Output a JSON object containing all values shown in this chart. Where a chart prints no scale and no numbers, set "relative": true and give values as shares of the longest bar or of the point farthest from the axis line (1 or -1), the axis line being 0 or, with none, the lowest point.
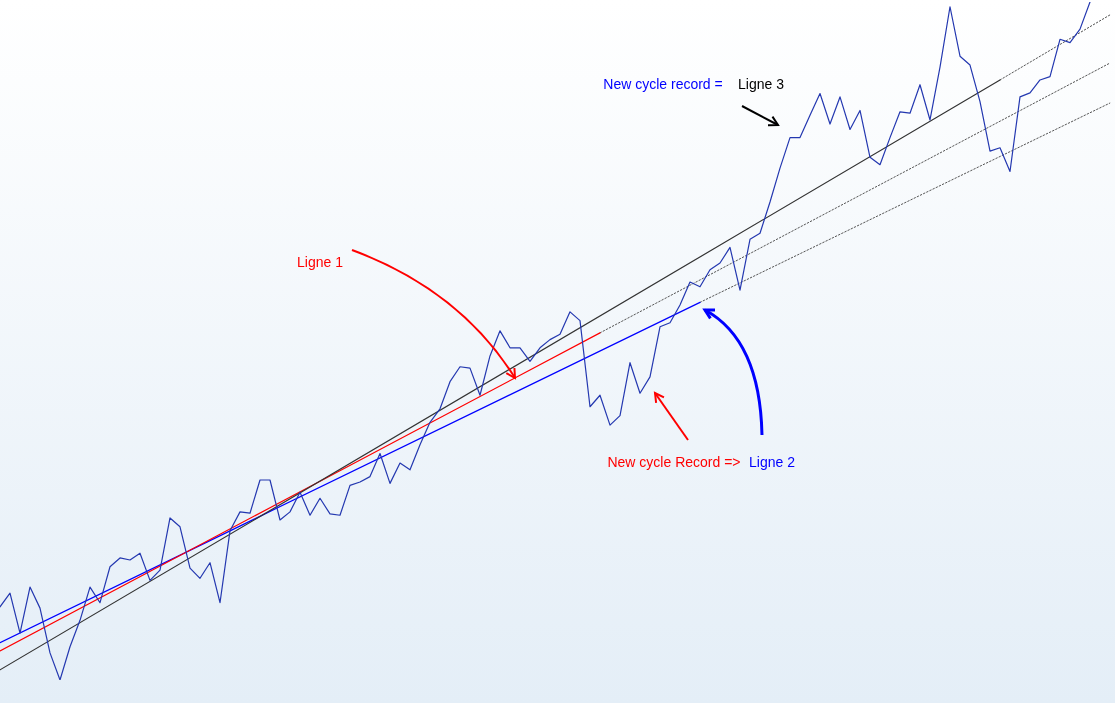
{
  "chart_data": {
    "type": "line",
    "relative": true,
    "categories": [
      null,
      null,
      null,
      null,
      null,
      null,
      null,
      null,
      null,
      null,
      null,
      null,
      null,
      null,
      null,
      null,
      null,
      null,
      null,
      null,
      null,
      null,
      null,
      null,
      null,
      null,
      null,
      null,
      null,
      null,
      null,
      null,
      null,
      null,
      null,
      null,
      null,
      null,
      null,
      null,
      null,
      null,
      null,
      null,
      null,
      null,
      null,
      null,
      null,
      null,
      null,
      null,
      null,
      null,
      null,
      null,
      null,
      null,
      null,
      null,
      null,
      null,
      null,
      null,
      null,
      null,
      null,
      null,
      null,
      null,
      null,
      null,
      null,
      null,
      null,
      null,
      null,
      null,
      null,
      null,
      null,
      null,
      null,
      null,
      null,
      null,
      null,
      null,
      null,
      null,
      null,
      null,
      null,
      null,
      null,
      null,
      null,
      null,
      null,
      null,
      null,
      null,
      null,
      null,
      null,
      null,
      null,
      null,
      null,
      null,
      null,
      null
    ],
    "series": [
      {
        "color": "#2438b0",
        "values": [
          0.108,
          0.128,
          0.069,
          0.137,
          0.106,
          0.04,
          0,
          0.049,
          0.088,
          0.137,
          0.114,
          0.167,
          0.18,
          0.177,
          0.187,
          0.147,
          0.162,
          0.239,
          0.226,
          0.165,
          0.15,
          0.173,
          0.114,
          0.22,
          0.248,
          0.246,
          0.295,
          0.295,
          0.236,
          0.248,
          0.277,
          0.243,
          0.268,
          0.245,
          0.243,
          0.287,
          0.292,
          0.3,
          0.334,
          0.29,
          0.32,
          0.31,
          0.347,
          0.38,
          0.4,
          0.44,
          0.462,
          0.46,
          0.42,
          0.478,
          0.515,
          0.49,
          0.49,
          0.47,
          0.49,
          0.502,
          0.51,
          0.543,
          0.53,
          0.403,
          0.42,
          0.376,
          0.39,
          0.468,
          0.423,
          0.447,
          0.521,
          0.527,
          0.553,
          0.587,
          0.58,
          0.605,
          0.615,
          0.638,
          0.575,
          0.65,
          0.659,
          0.705,
          0.755,
          0.8,
          0.8,
          0.833,
          0.865,
          0.82,
          0.86,
          0.812,
          0.84,
          0.771,
          0.76,
          0.8,
          0.838,
          0.836,
          0.878,
          0.826,
          0.904,
          0.993,
          0.92,
          0.907,
          0.853,
          0.78,
          0.785,
          0.75,
          0.86,
          0.866,
          0.885,
          0.89,
          0.945,
          0.94,
          0.96,
          1.0,
          null,
          null
        ]
      },
      {
        "type": "line",
        "color": "#333333",
        "values": [
          0.015,
          null,
          null,
          null,
          null,
          null,
          null,
          null,
          null,
          null,
          null,
          null,
          null,
          null,
          null,
          null,
          null,
          null,
          null,
          null,
          null,
          null,
          null,
          null,
          null,
          null,
          null,
          null,
          null,
          null,
          null,
          null,
          null,
          null,
          null,
          null,
          null,
          null,
          null,
          null,
          null,
          null,
          null,
          null,
          null,
          null,
          null,
          null,
          null,
          null,
          null,
          null,
          null,
          null,
          null,
          null,
          null,
          null,
          null,
          null,
          null,
          null,
          null,
          null,
          null,
          null,
          null,
          null,
          null,
          null,
          null,
          null,
          null,
          null,
          null,
          null,
          null,
          null,
          null,
          null,
          null,
          null,
          null,
          null,
          null,
          null,
          null,
          null,
          null,
          null,
          null,
          null,
          null,
          null,
          null,
          null,
          null,
          null,
          null,
          null,
          0.885,
          null,
          null,
          null,
          null,
          null,
          null,
          null,
          null,
          null,
          null,
          null
        ]
      },
      {
        "type": "line",
        "color": "#ff0000",
        "values": [
          0.043,
          null,
          null,
          null,
          null,
          null,
          null,
          null,
          null,
          null,
          null,
          null,
          null,
          null,
          null,
          null,
          null,
          null,
          null,
          null,
          null,
          null,
          null,
          null,
          null,
          null,
          null,
          null,
          null,
          null,
          null,
          null,
          null,
          null,
          null,
          null,
          null,
          null,
          null,
          null,
          null,
          null,
          null,
          null,
          null,
          null,
          null,
          null,
          null,
          null,
          null,
          null,
          null,
          null,
          null,
          null,
          null,
          null,
          null,
          null,
          0.512,
          null,
          null,
          null,
          null,
          null,
          null,
          null,
          null,
          null,
          null,
          null,
          null,
          null,
          null,
          null,
          null,
          null,
          null,
          null,
          null,
          null,
          null,
          null,
          null,
          null,
          null,
          null,
          null,
          null,
          null,
          null,
          null,
          null,
          null,
          null,
          null,
          null,
          null,
          null,
          null,
          null,
          null,
          null,
          null,
          null,
          null,
          null,
          null,
          null,
          null,
          null
        ]
      },
      {
        "type": "line",
        "color": "#0000ff",
        "values": [
          0.055,
          null,
          null,
          null,
          null,
          null,
          null,
          null,
          null,
          null,
          null,
          null,
          null,
          null,
          null,
          null,
          null,
          null,
          null,
          null,
          null,
          null,
          null,
          null,
          null,
          null,
          null,
          null,
          null,
          null,
          null,
          null,
          null,
          null,
          null,
          null,
          null,
          null,
          null,
          null,
          null,
          null,
          null,
          null,
          null,
          null,
          null,
          null,
          null,
          null,
          null,
          null,
          null,
          null,
          null,
          null,
          null,
          null,
          null,
          null,
          null,
          null,
          null,
          null,
          null,
          null,
          null,
          null,
          null,
          null,
          0.557,
          null,
          null,
          null,
          null,
          null,
          null,
          null,
          null,
          null,
          null,
          null,
          null,
          null,
          null,
          null,
          null,
          null,
          null,
          null,
          null,
          null,
          null,
          null,
          null,
          null,
          null,
          null,
          null,
          null,
          null,
          null,
          null,
          null,
          null,
          null,
          null,
          null,
          null,
          null,
          null,
          null
        ]
      },
      {
        "type": "line",
        "color": "#555555",
        "line_style": "dotted",
        "values": [
          null,
          null,
          null,
          null,
          null,
          null,
          null,
          null,
          null,
          null,
          null,
          null,
          null,
          null,
          null,
          null,
          null,
          null,
          null,
          null,
          null,
          null,
          null,
          null,
          null,
          null,
          null,
          null,
          null,
          null,
          null,
          null,
          null,
          null,
          null,
          null,
          null,
          null,
          null,
          null,
          null,
          null,
          null,
          null,
          null,
          null,
          null,
          null,
          null,
          null,
          null,
          null,
          null,
          null,
          null,
          null,
          null,
          null,
          null,
          null,
          null,
          null,
          null,
          null,
          null,
          null,
          null,
          null,
          null,
          null,
          null,
          null,
          null,
          null,
          null,
          null,
          null,
          null,
          null,
          null,
          null,
          null,
          null,
          null,
          null,
          null,
          null,
          null,
          null,
          null,
          null,
          null,
          null,
          null,
          null,
          null,
          null,
          null,
          null,
          null,
          0.885,
          null,
          null,
          null,
          null,
          null,
          null,
          null,
          null,
          null,
          null,
          0.981
        ]
      },
      {
        "type": "line",
        "color": "#555555",
        "line_style": "dotted",
        "values": [
          null,
          null,
          null,
          null,
          null,
          null,
          null,
          null,
          null,
          null,
          null,
          null,
          null,
          null,
          null,
          null,
          null,
          null,
          null,
          null,
          null,
          null,
          null,
          null,
          null,
          null,
          null,
          null,
          null,
          null,
          null,
          null,
          null,
          null,
          null,
          null,
          null,
          null,
          null,
          null,
          null,
          null,
          null,
          null,
          null,
          null,
          null,
          null,
          null,
          null,
          null,
          null,
          null,
          null,
          null,
          null,
          null,
          null,
          null,
          null,
          0.512,
          null,
          null,
          null,
          null,
          null,
          null,
          null,
          null,
          null,
          null,
          null,
          null,
          null,
          null,
          null,
          null,
          null,
          null,
          null,
          null,
          null,
          null,
          null,
          null,
          null,
          null,
          null,
          null,
          null,
          null,
          null,
          null,
          null,
          null,
          null,
          null,
          null,
          null,
          null,
          null,
          null,
          null,
          null,
          null,
          null,
          null,
          null,
          null,
          null,
          null,
          0.91
        ]
      },
      {
        "type": "line",
        "color": "#555555",
        "line_style": "dotted",
        "values": [
          null,
          null,
          null,
          null,
          null,
          null,
          null,
          null,
          null,
          null,
          null,
          null,
          null,
          null,
          null,
          null,
          null,
          null,
          null,
          null,
          null,
          null,
          null,
          null,
          null,
          null,
          null,
          null,
          null,
          null,
          null,
          null,
          null,
          null,
          null,
          null,
          null,
          null,
          null,
          null,
          null,
          null,
          null,
          null,
          null,
          null,
          null,
          null,
          null,
          null,
          null,
          null,
          null,
          null,
          null,
          null,
          null,
          null,
          null,
          null,
          null,
          null,
          null,
          null,
          null,
          null,
          null,
          null,
          null,
          null,
          0.557,
          null,
          null,
          null,
          null,
          null,
          null,
          null,
          null,
          null,
          null,
          null,
          null,
          null,
          null,
          null,
          null,
          null,
          null,
          null,
          null,
          null,
          null,
          null,
          null,
          null,
          null,
          null,
          null,
          null,
          null,
          null,
          null,
          null,
          null,
          null,
          null,
          null,
          null,
          null,
          null,
          0.851
        ]
      }
    ],
    "annotations": [
      "Ligne 1",
      "New cycle Record =>",
      "Ligne 2",
      "New cycle record =",
      "Ligne 3"
    ]
  }
}
